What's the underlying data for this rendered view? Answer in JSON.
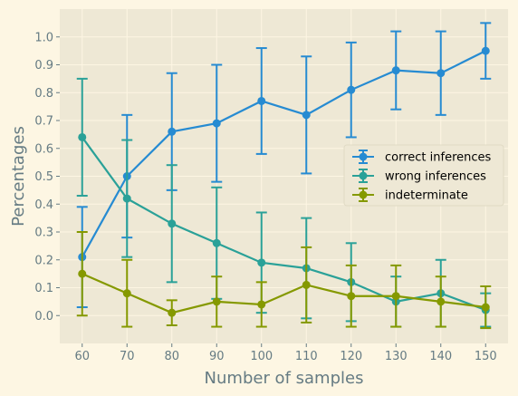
{
  "chart_data": {
    "type": "line",
    "title": "",
    "xlabel": "Number of samples",
    "ylabel": "Percentages",
    "x": [
      60,
      70,
      80,
      90,
      100,
      110,
      120,
      130,
      140,
      150
    ],
    "xlim": [
      55,
      155
    ],
    "ylim": [
      -0.1,
      1.1
    ],
    "xticks": [
      60,
      70,
      80,
      90,
      100,
      110,
      120,
      130,
      140,
      150
    ],
    "yticks": [
      0.0,
      0.1,
      0.2,
      0.3,
      0.4,
      0.5,
      0.6,
      0.7,
      0.8,
      0.9,
      1.0
    ],
    "ytick_labels": [
      "0.0",
      "0.1",
      "0.2",
      "0.3",
      "0.4",
      "0.5",
      "0.6",
      "0.7",
      "0.8",
      "0.9",
      "1.0"
    ],
    "grid": true,
    "legend_position": "right",
    "series": [
      {
        "name": "correct inferences",
        "color": "#268bd2",
        "values": [
          0.21,
          0.5,
          0.66,
          0.69,
          0.77,
          0.72,
          0.81,
          0.88,
          0.87,
          0.95
        ],
        "errors": [
          0.18,
          0.22,
          0.21,
          0.21,
          0.19,
          0.21,
          0.17,
          0.14,
          0.15,
          0.1
        ]
      },
      {
        "name": "wrong inferences",
        "color": "#2aa198",
        "values": [
          0.64,
          0.42,
          0.33,
          0.26,
          0.19,
          0.17,
          0.12,
          0.05,
          0.08,
          0.02
        ],
        "errors": [
          0.21,
          0.21,
          0.21,
          0.2,
          0.18,
          0.18,
          0.14,
          0.09,
          0.12,
          0.06
        ]
      },
      {
        "name": "indeterminate",
        "color": "#859900",
        "values": [
          0.15,
          0.08,
          0.01,
          0.05,
          0.04,
          0.11,
          0.07,
          0.07,
          0.05,
          0.03
        ],
        "errors": [
          0.15,
          0.12,
          0.045,
          0.09,
          0.08,
          0.135,
          0.11,
          0.11,
          0.09,
          0.075
        ]
      }
    ]
  },
  "colors": {
    "figure_background": "#fdf6e3",
    "plot_background": "#eee8d5",
    "grid": "#fdf6e3",
    "text": "#657b83"
  }
}
